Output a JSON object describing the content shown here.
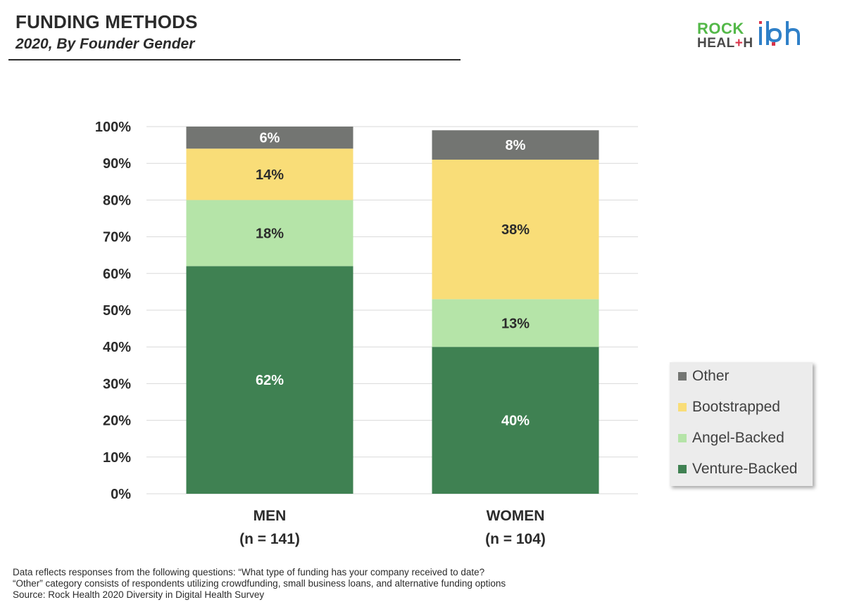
{
  "header": {
    "title": "FUNDING METHODS",
    "subtitle": "2020, By Founder Gender"
  },
  "logo": {
    "line1": "ROCK",
    "line2_a": "HEAL",
    "line2_plus": "+",
    "line2_b": "H",
    "mark": "ibh"
  },
  "chart_data": {
    "type": "bar",
    "stacked": true,
    "categories": [
      "MEN",
      "WOMEN"
    ],
    "category_sublabels": [
      "(n = 141)",
      "(n = 104)"
    ],
    "series": [
      {
        "name": "Venture-Backed",
        "values": [
          62,
          40
        ],
        "labels": [
          "62%",
          "40%"
        ],
        "color": "#3f8152",
        "label_color": "#ffffff"
      },
      {
        "name": "Angel-Backed",
        "values": [
          18,
          13
        ],
        "labels": [
          "18%",
          "13%"
        ],
        "color": "#b5e4a8",
        "label_color": "#2b2b2b"
      },
      {
        "name": "Bootstrapped",
        "values": [
          14,
          38
        ],
        "labels": [
          "14%",
          "38%"
        ],
        "color": "#f9dd78",
        "label_color": "#2b2b2b"
      },
      {
        "name": "Other",
        "values": [
          6,
          8
        ],
        "labels": [
          "6%",
          "8%"
        ],
        "color": "#737572",
        "label_color": "#ffffff"
      }
    ],
    "ylim": [
      0,
      100
    ],
    "yticks": [
      "0%",
      "10%",
      "20%",
      "30%",
      "40%",
      "50%",
      "60%",
      "70%",
      "80%",
      "90%",
      "100%"
    ],
    "grid": true,
    "legend": "right",
    "legend_order": [
      "Other",
      "Bootstrapped",
      "Angel-Backed",
      "Venture-Backed"
    ]
  },
  "footnotes": [
    "Data reflects responses from the following questions: “What type of funding has your company received to date?",
    "“Other” category consists of respondents utilizing crowdfunding, small business loans, and alternative funding options",
    "Source: Rock Health 2020 Diversity in Digital Health Survey"
  ]
}
